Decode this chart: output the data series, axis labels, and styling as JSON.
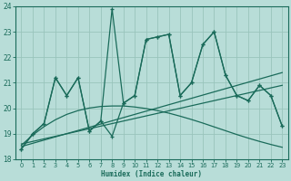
{
  "xlabel": "Humidex (Indice chaleur)",
  "xlim": [
    -0.5,
    23.5
  ],
  "ylim": [
    18,
    24
  ],
  "xticks": [
    0,
    1,
    2,
    3,
    4,
    5,
    6,
    7,
    8,
    9,
    10,
    11,
    12,
    13,
    14,
    15,
    16,
    17,
    18,
    19,
    20,
    21,
    22,
    23
  ],
  "yticks": [
    18,
    19,
    20,
    21,
    22,
    23,
    24
  ],
  "bg_color": "#b8ddd8",
  "line_color": "#1a6b5a",
  "grid_color": "#99c4bc",
  "main_x": [
    0,
    1,
    2,
    3,
    4,
    5,
    6,
    7,
    8,
    9,
    10,
    11,
    12,
    13,
    14,
    15,
    16,
    17,
    18,
    19,
    20,
    21,
    22,
    23
  ],
  "main_y": [
    18.4,
    19.0,
    19.4,
    21.2,
    20.5,
    21.2,
    19.1,
    19.5,
    23.9,
    20.2,
    20.5,
    22.7,
    22.8,
    22.9,
    20.5,
    21.0,
    22.5,
    23.0,
    21.3,
    20.5,
    20.3,
    20.9,
    20.5,
    19.3
  ],
  "line2_x": [
    0,
    1,
    2,
    3,
    4,
    5,
    6,
    7,
    8,
    9,
    10,
    11,
    12,
    13,
    14,
    15,
    16,
    17,
    18,
    19,
    20,
    21,
    22,
    23
  ],
  "line2_y": [
    18.4,
    19.0,
    19.4,
    21.2,
    20.5,
    21.2,
    19.1,
    19.5,
    18.9,
    20.2,
    20.5,
    22.7,
    22.8,
    22.9,
    20.5,
    21.0,
    22.5,
    23.0,
    21.3,
    20.5,
    20.3,
    20.9,
    20.5,
    19.3
  ],
  "trend1_x": [
    0,
    23
  ],
  "trend1_y": [
    18.5,
    21.4
  ],
  "trend2_x": [
    0,
    23
  ],
  "trend2_y": [
    18.6,
    20.9
  ],
  "curve_x": [
    0,
    1,
    2,
    3,
    4,
    5,
    6,
    7,
    8,
    9,
    10,
    11,
    12,
    13,
    14,
    15,
    16,
    17,
    18,
    19,
    20,
    21,
    22,
    23
  ],
  "curve_y": [
    18.55,
    18.95,
    19.28,
    19.55,
    19.76,
    19.91,
    20.01,
    20.07,
    20.09,
    20.09,
    20.05,
    19.99,
    19.91,
    19.81,
    19.69,
    19.56,
    19.42,
    19.27,
    19.12,
    18.97,
    18.83,
    18.7,
    18.58,
    18.47
  ]
}
